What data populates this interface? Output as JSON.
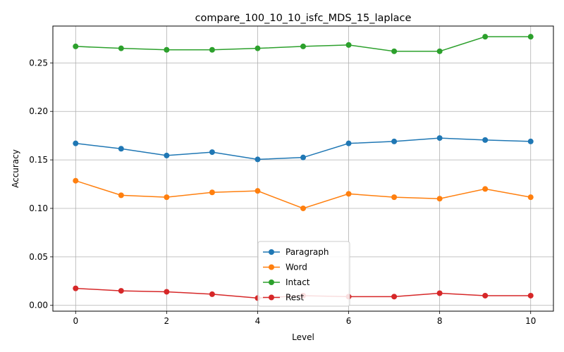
{
  "chart_data": {
    "type": "line",
    "title": "compare_100_10_10_isfc_MDS_15_laplace",
    "xlabel": "Level",
    "ylabel": "Accuracy",
    "x": [
      0,
      1,
      2,
      3,
      4,
      5,
      6,
      7,
      8,
      9,
      10
    ],
    "xlim": [
      -0.5,
      10.5
    ],
    "ylim": [
      -0.006,
      0.288
    ],
    "xticks": [
      0,
      2,
      4,
      6,
      8,
      10
    ],
    "yticks": [
      0.0,
      0.05,
      0.1,
      0.15,
      0.2,
      0.25
    ],
    "ytick_labels": [
      "0.00",
      "0.05",
      "0.10",
      "0.15",
      "0.20",
      "0.25"
    ],
    "grid": true,
    "legend_position": "lower center",
    "series": [
      {
        "name": "Paragraph",
        "color": "#1f77b4",
        "values": [
          0.167,
          0.1615,
          0.1545,
          0.158,
          0.1505,
          0.1525,
          0.167,
          0.169,
          0.1725,
          0.1705,
          0.169
        ]
      },
      {
        "name": "Word",
        "color": "#ff7f0e",
        "values": [
          0.1285,
          0.1135,
          0.1115,
          0.1165,
          0.118,
          0.1,
          0.115,
          0.1115,
          0.11,
          0.12,
          0.1115
        ]
      },
      {
        "name": "Intact",
        "color": "#2ca02c",
        "values": [
          0.267,
          0.265,
          0.2635,
          0.2635,
          0.265,
          0.267,
          0.2685,
          0.262,
          0.262,
          0.277,
          0.277
        ]
      },
      {
        "name": "Rest",
        "color": "#d62728",
        "values": [
          0.0175,
          0.015,
          0.014,
          0.0115,
          0.0075,
          0.01,
          0.009,
          0.009,
          0.0125,
          0.01,
          0.01
        ]
      }
    ]
  }
}
